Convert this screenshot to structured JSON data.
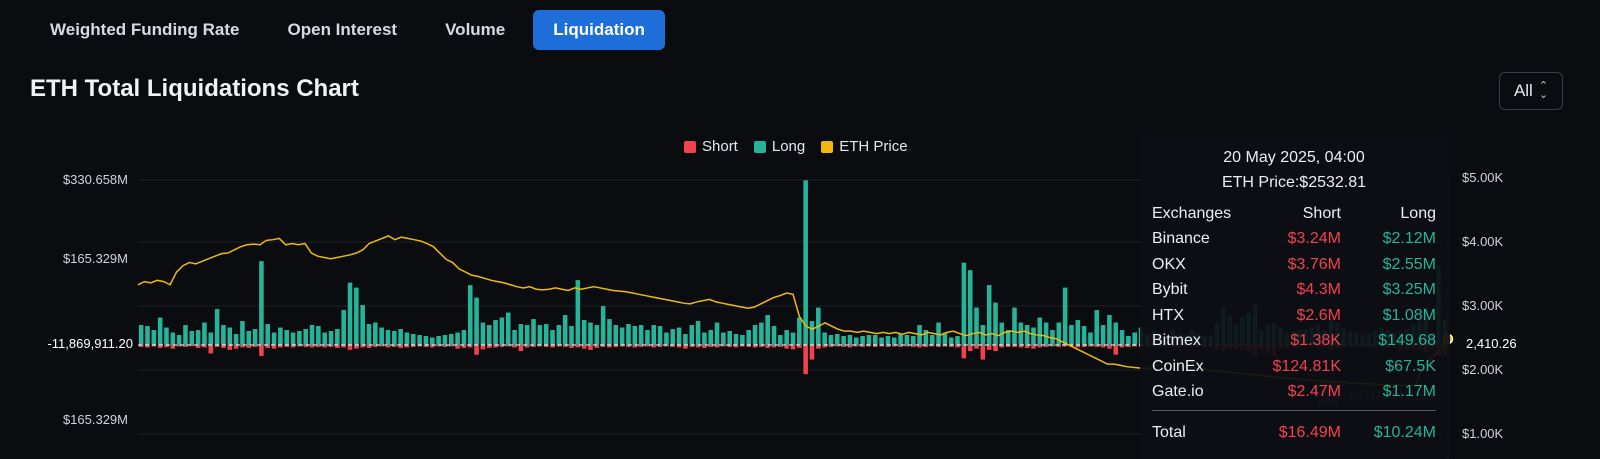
{
  "tabs": [
    {
      "label": "Weighted Funding Rate",
      "active": false
    },
    {
      "label": "Open Interest",
      "active": false
    },
    {
      "label": "Volume",
      "active": false
    },
    {
      "label": "Liquidation",
      "active": true
    }
  ],
  "page_title": "ETH Total Liquidations Chart",
  "range_select": {
    "value": "All"
  },
  "colors": {
    "short": "#f2414f",
    "long": "#25b39a",
    "price": "#f0b90b",
    "accent": "#1d6ed8"
  },
  "watermark": "coinglass",
  "chart_data": {
    "type": "bar",
    "legend": [
      "Short",
      "Long",
      "ETH Price"
    ],
    "legend_position": "top-center",
    "left_axis_ticks": [
      "$330.658M",
      "$165.329M",
      "-11,869,911.20",
      "$165.329M"
    ],
    "left_axis_values": [
      330658000,
      165329000,
      -11869911.2,
      -165329000
    ],
    "right_axis_ticks": [
      "$5.00K",
      "$4.00K",
      "$3.00K",
      "$2.00K",
      "$1.00K"
    ],
    "right_axis_values": [
      5000,
      4000,
      3000,
      2000,
      1000
    ],
    "current_price_label": "2,410.26",
    "current_price": 2410.26,
    "long_values": [
      40,
      38,
      30,
      55,
      35,
      25,
      20,
      40,
      28,
      30,
      45,
      25,
      72,
      40,
      35,
      22,
      48,
      28,
      32,
      168,
      42,
      25,
      35,
      30,
      25,
      28,
      32,
      40,
      38,
      25,
      28,
      32,
      70,
      125,
      115,
      80,
      42,
      45,
      35,
      30,
      28,
      32,
      25,
      22,
      20,
      18,
      15,
      18,
      20,
      22,
      25,
      30,
      120,
      95,
      45,
      40,
      50,
      55,
      65,
      30,
      42,
      40,
      52,
      40,
      42,
      30,
      40,
      60,
      38,
      130,
      50,
      45,
      40,
      78,
      52,
      40,
      35,
      42,
      38,
      40,
      30,
      40,
      38,
      25,
      32,
      35,
      22,
      40,
      48,
      25,
      30,
      45,
      25,
      28,
      22,
      20,
      30,
      40,
      45,
      60,
      38,
      20,
      30,
      25,
      55,
      330,
      48,
      75,
      25,
      20,
      22,
      18,
      20,
      15,
      18,
      20,
      20,
      15,
      18,
      15,
      22,
      20,
      18,
      40,
      30,
      20,
      45,
      25,
      15,
      18,
      165,
      150,
      75,
      40,
      120,
      85,
      45,
      30,
      75,
      45,
      40,
      35,
      55,
      45,
      30,
      45,
      115,
      40,
      50,
      38,
      25,
      70,
      40,
      60,
      45,
      30,
      18,
      25,
      35,
      20,
      30,
      25,
      18,
      30,
      22,
      20,
      28,
      22,
      18,
      20,
      45,
      75,
      60,
      40,
      55,
      65,
      80,
      30,
      40,
      45,
      35,
      25,
      28,
      30,
      32,
      35,
      40,
      30,
      55,
      45,
      35,
      28,
      25,
      20,
      25,
      30,
      35,
      30,
      25,
      28,
      32,
      40,
      48,
      75,
      25,
      160,
      50
    ],
    "short_values": [
      8,
      10,
      6,
      12,
      9,
      15,
      6,
      8,
      5,
      12,
      10,
      35,
      8,
      12,
      20,
      15,
      10,
      12,
      8,
      45,
      12,
      15,
      10,
      8,
      10,
      6,
      8,
      10,
      8,
      10,
      8,
      12,
      10,
      20,
      15,
      10,
      12,
      8,
      6,
      10,
      8,
      12,
      10,
      8,
      6,
      8,
      10,
      6,
      8,
      6,
      15,
      12,
      10,
      40,
      18,
      12,
      10,
      8,
      6,
      10,
      25,
      10,
      8,
      6,
      8,
      10,
      6,
      8,
      12,
      10,
      15,
      20,
      12,
      8,
      10,
      8,
      6,
      8,
      10,
      8,
      6,
      10,
      8,
      6,
      8,
      10,
      15,
      8,
      10,
      12,
      8,
      10,
      6,
      8,
      10,
      6,
      8,
      10,
      8,
      12,
      10,
      8,
      15,
      18,
      12,
      120,
      60,
      15,
      10,
      8,
      6,
      8,
      10,
      6,
      8,
      6,
      8,
      6,
      8,
      6,
      8,
      6,
      8,
      10,
      8,
      6,
      8,
      6,
      8,
      10,
      55,
      25,
      15,
      60,
      20,
      25,
      10,
      8,
      8,
      10,
      12,
      15,
      10,
      8,
      6,
      8,
      6,
      8,
      10,
      8,
      6,
      8,
      10,
      15,
      40,
      10,
      8,
      6,
      8,
      6,
      8,
      8,
      6,
      8,
      10,
      8,
      8,
      6,
      8,
      6,
      20,
      25,
      15,
      18,
      20,
      25,
      45,
      20,
      30,
      45,
      15,
      12,
      10,
      8,
      6,
      8,
      10,
      8,
      18,
      12,
      10,
      8,
      6,
      8,
      10,
      8,
      6,
      10,
      12,
      25,
      18,
      15,
      20,
      30,
      22,
      45,
      40
    ],
    "price_values": [
      3350,
      3400,
      3380,
      3420,
      3400,
      3350,
      3550,
      3650,
      3700,
      3680,
      3720,
      3760,
      3800,
      3840,
      3850,
      3900,
      3950,
      3980,
      3990,
      3980,
      4050,
      4060,
      4080,
      3980,
      4000,
      3980,
      4000,
      3850,
      3800,
      3780,
      3760,
      3780,
      3800,
      3820,
      3850,
      3900,
      4000,
      4040,
      4080,
      4120,
      4060,
      4100,
      4080,
      4060,
      4040,
      4000,
      3950,
      3850,
      3750,
      3700,
      3600,
      3550,
      3500,
      3480,
      3450,
      3420,
      3400,
      3380,
      3350,
      3320,
      3300,
      3320,
      3280,
      3270,
      3280,
      3300,
      3280,
      3260,
      3300,
      3280,
      3300,
      3320,
      3300,
      3280,
      3260,
      3250,
      3240,
      3220,
      3200,
      3180,
      3160,
      3140,
      3120,
      3100,
      3080,
      3060,
      3050,
      3080,
      3100,
      3120,
      3080,
      3060,
      3040,
      3020,
      3000,
      2980,
      3000,
      3050,
      3100,
      3150,
      3180,
      3220,
      3200,
      2850,
      2700,
      2650,
      2700,
      2750,
      2700,
      2650,
      2620,
      2620,
      2600,
      2620,
      2600,
      2580,
      2600,
      2580,
      2600,
      2570,
      2600,
      2580,
      2560,
      2600,
      2580,
      2560,
      2600,
      2620,
      2580,
      2550,
      2580,
      2600,
      2560,
      2580,
      2550,
      2600,
      2620,
      2600,
      2620,
      2580,
      2560,
      2550,
      2520,
      2500,
      2450,
      2400,
      2350,
      2300,
      2250,
      2200,
      2150,
      2100,
      2100,
      2080,
      2060,
      2050,
      2040,
      2030,
      2050,
      2080,
      2100,
      2100,
      2080,
      2060,
      2050,
      2030,
      2020,
      2000,
      1990,
      1980,
      1970,
      1960,
      1950,
      1940,
      1930,
      1920,
      1910,
      1900,
      1890,
      1880,
      1870,
      1860,
      1850,
      1840,
      1840,
      1830,
      1820,
      1820,
      1810,
      1800,
      1800,
      1790,
      1790,
      1780,
      1780,
      1775,
      1770,
      1768,
      1765,
      1762,
      2080,
      2150,
      2250,
      2350,
      2410
    ]
  },
  "tooltip": {
    "date": "20 May 2025, 04:00",
    "price": "ETH Price:$2532.81",
    "headers": {
      "exchange": "Exchanges",
      "short": "Short",
      "long": "Long"
    },
    "rows": [
      {
        "exchange": "Binance",
        "short": "$3.24M",
        "long": "$2.12M"
      },
      {
        "exchange": "OKX",
        "short": "$3.76M",
        "long": "$2.55M"
      },
      {
        "exchange": "Bybit",
        "short": "$4.3M",
        "long": "$3.25M"
      },
      {
        "exchange": "HTX",
        "short": "$2.6M",
        "long": "$1.08M"
      },
      {
        "exchange": "Bitmex",
        "short": "$1.38K",
        "long": "$149.68"
      },
      {
        "exchange": "CoinEx",
        "short": "$124.81K",
        "long": "$67.5K"
      },
      {
        "exchange": "Gate.io",
        "short": "$2.47M",
        "long": "$1.17M"
      }
    ],
    "total": {
      "exchange": "Total",
      "short": "$16.49M",
      "long": "$10.24M"
    }
  }
}
